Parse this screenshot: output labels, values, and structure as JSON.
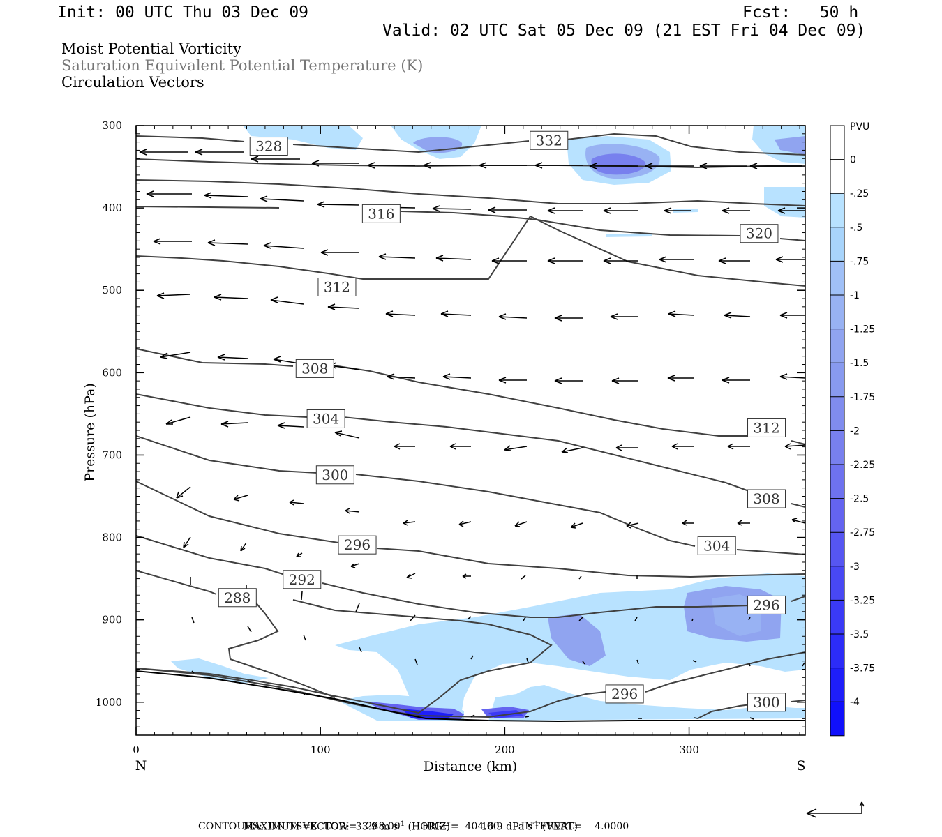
{
  "header": {
    "init": "Init: 00 UTC Thu 03 Dec 09",
    "fcst": "Fcst:   50 h",
    "valid": "Valid: 02 UTC Sat 05 Dec 09 (21 EST Fri 04 Dec 09)"
  },
  "fields": {
    "pv": "Moist Potential Vorticity",
    "theta": "Saturation Equivalent Potential Temperature (K)",
    "vectors": "Circulation Vectors"
  },
  "footer": {
    "max_vector_label": "MAXIMUM VECTOR:",
    "max_horiz": "33.9 m s",
    "max_horiz_unit": "(HORIZ)",
    "max_vert": "16.9 dPa s",
    "max_vert_unit": "(VERT)",
    "exp": "-1",
    "contours": "CONTOURS:  UNITS=K  LOW=   288.00       HIGH=  404.00       INTERVAL=    4.0000"
  },
  "chart_data": {
    "type": "cross-section",
    "xlabel": "Distance (km)",
    "ylabel": "Pressure (hPa)",
    "xlim": [
      0,
      363
    ],
    "ylim": [
      1040,
      300
    ],
    "x_ticks": [
      0,
      100,
      200,
      300
    ],
    "y_ticks": [
      300,
      400,
      500,
      600,
      700,
      800,
      900,
      1000
    ],
    "x_end_labels": {
      "left": "N",
      "right": "S"
    },
    "colorbar": {
      "title": "PVU",
      "labels": [
        "0",
        "-.25",
        "-.5",
        "-.75",
        "-1",
        "-1.25",
        "-1.5",
        "-1.75",
        "-2",
        "-2.25",
        "-2.5",
        "-2.75",
        "-3",
        "-3.25",
        "-3.5",
        "-3.75",
        "-4"
      ],
      "colors": [
        "#ffffff",
        "#ffffff",
        "#b8e2ff",
        "#a8d4fb",
        "#a0c0f7",
        "#98b2f3",
        "#90a4f0",
        "#889aef",
        "#808cee",
        "#7880ee",
        "#6e72ef",
        "#6464f0",
        "#5656f2",
        "#4848f4",
        "#3a3af6",
        "#2c2cf8",
        "#1e1efa",
        "#1010fc"
      ]
    },
    "contour_labels": [
      {
        "text": "328",
        "x": 72,
        "p": 325
      },
      {
        "text": "332",
        "x": 224,
        "p": 318
      },
      {
        "text": "316",
        "x": 133,
        "p": 407
      },
      {
        "text": "320",
        "x": 338,
        "p": 431
      },
      {
        "text": "312",
        "x": 109,
        "p": 496
      },
      {
        "text": "308",
        "x": 97,
        "p": 595
      },
      {
        "text": "304",
        "x": 103,
        "p": 656
      },
      {
        "text": "312",
        "x": 342,
        "p": 667
      },
      {
        "text": "300",
        "x": 108,
        "p": 724
      },
      {
        "text": "308",
        "x": 342,
        "p": 753
      },
      {
        "text": "296",
        "x": 120,
        "p": 809
      },
      {
        "text": "304",
        "x": 315,
        "p": 810
      },
      {
        "text": "292",
        "x": 90,
        "p": 851
      },
      {
        "text": "288",
        "x": 55,
        "p": 873
      },
      {
        "text": "296",
        "x": 342,
        "p": 882
      },
      {
        "text": "296",
        "x": 265,
        "p": 990
      },
      {
        "text": "300",
        "x": 342,
        "p": 1000
      }
    ]
  }
}
